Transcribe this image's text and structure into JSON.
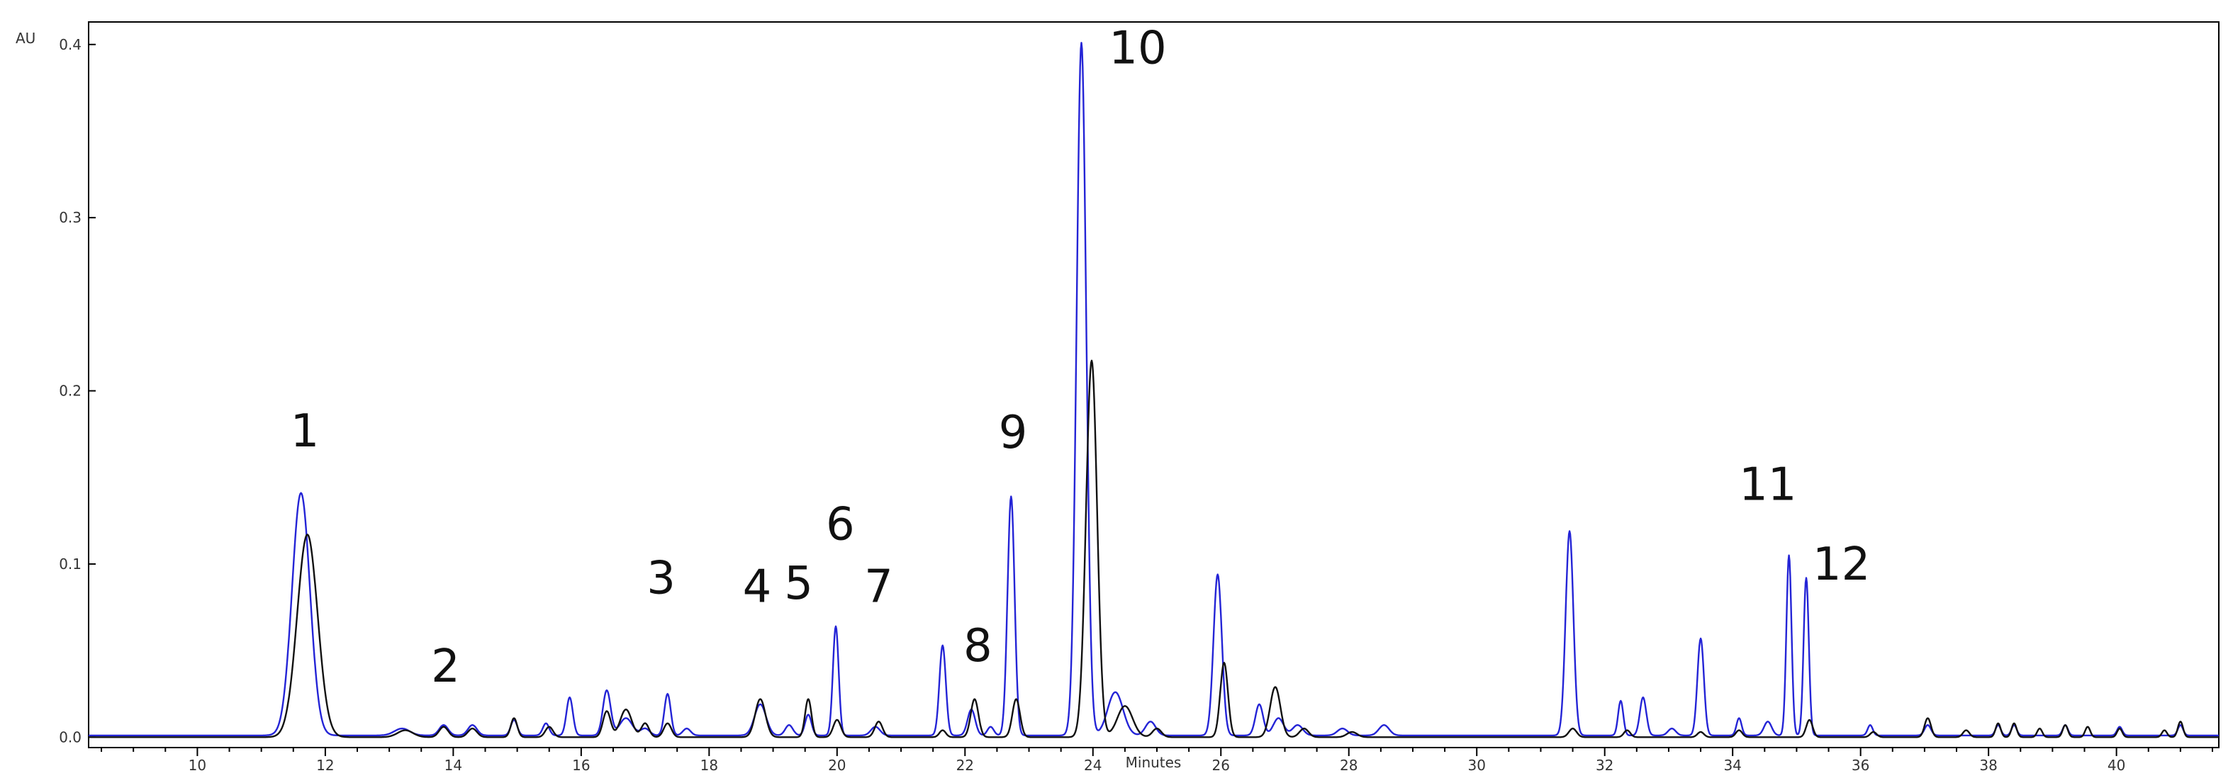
{
  "chart_data": {
    "type": "line",
    "title": "",
    "xlabel": "Minutes",
    "ylabel": "AU",
    "xlim": [
      8.3,
      41.6
    ],
    "ylim": [
      -0.006,
      0.413
    ],
    "x_ticks": [
      "10",
      "12",
      "14",
      "16",
      "18",
      "20",
      "22",
      "24",
      "26",
      "28",
      "30",
      "32",
      "34",
      "36",
      "38",
      "40"
    ],
    "y_ticks": [
      "0.0",
      "0.1",
      "0.2",
      "0.3",
      "0.4"
    ],
    "grid": false,
    "legend": "none",
    "baseline_start": 10.0,
    "series": [
      {
        "color": "#2424d6",
        "baseline": 0.001,
        "peaks": [
          [
            11.62,
            0.14,
            0.14
          ],
          [
            13.2,
            0.004,
            0.12
          ],
          [
            13.85,
            0.006,
            0.07
          ],
          [
            14.3,
            0.006,
            0.07
          ],
          [
            14.95,
            0.009,
            0.05
          ],
          [
            15.45,
            0.007,
            0.05
          ],
          [
            15.82,
            0.022,
            0.05
          ],
          [
            16.4,
            0.026,
            0.06
          ],
          [
            16.7,
            0.01,
            0.1
          ],
          [
            17.0,
            0.004,
            0.07
          ],
          [
            17.35,
            0.024,
            0.05
          ],
          [
            17.65,
            0.004,
            0.06
          ],
          [
            18.8,
            0.018,
            0.09
          ],
          [
            19.25,
            0.006,
            0.06
          ],
          [
            19.55,
            0.012,
            0.05
          ],
          [
            19.98,
            0.063,
            0.045
          ],
          [
            20.6,
            0.005,
            0.07
          ],
          [
            21.65,
            0.052,
            0.05
          ],
          [
            22.1,
            0.015,
            0.06
          ],
          [
            22.4,
            0.005,
            0.05
          ],
          [
            22.72,
            0.138,
            0.055
          ],
          [
            23.82,
            0.4,
            0.075
          ],
          [
            24.35,
            0.025,
            0.12
          ],
          [
            24.9,
            0.008,
            0.08
          ],
          [
            25.95,
            0.093,
            0.065
          ],
          [
            26.6,
            0.018,
            0.06
          ],
          [
            26.9,
            0.01,
            0.08
          ],
          [
            27.2,
            0.006,
            0.08
          ],
          [
            27.9,
            0.004,
            0.08
          ],
          [
            28.55,
            0.006,
            0.08
          ],
          [
            31.45,
            0.118,
            0.06
          ],
          [
            32.25,
            0.02,
            0.04
          ],
          [
            32.6,
            0.022,
            0.05
          ],
          [
            33.05,
            0.004,
            0.06
          ],
          [
            33.5,
            0.056,
            0.05
          ],
          [
            34.1,
            0.01,
            0.04
          ],
          [
            34.55,
            0.008,
            0.06
          ],
          [
            34.88,
            0.104,
            0.04
          ],
          [
            35.15,
            0.091,
            0.04
          ],
          [
            36.15,
            0.006,
            0.04
          ],
          [
            37.05,
            0.006,
            0.05
          ],
          [
            38.15,
            0.006,
            0.04
          ],
          [
            38.4,
            0.006,
            0.04
          ],
          [
            39.2,
            0.006,
            0.04
          ],
          [
            40.05,
            0.005,
            0.04
          ],
          [
            41.0,
            0.006,
            0.04
          ]
        ]
      },
      {
        "color": "#111111",
        "baseline": 0.0,
        "peaks": [
          [
            11.72,
            0.117,
            0.16
          ],
          [
            13.25,
            0.004,
            0.12
          ],
          [
            13.85,
            0.006,
            0.07
          ],
          [
            14.3,
            0.005,
            0.07
          ],
          [
            14.95,
            0.011,
            0.05
          ],
          [
            15.5,
            0.006,
            0.06
          ],
          [
            16.4,
            0.015,
            0.06
          ],
          [
            16.7,
            0.016,
            0.09
          ],
          [
            17.0,
            0.008,
            0.06
          ],
          [
            17.35,
            0.008,
            0.06
          ],
          [
            18.8,
            0.022,
            0.08
          ],
          [
            19.55,
            0.022,
            0.05
          ],
          [
            20.0,
            0.01,
            0.06
          ],
          [
            20.65,
            0.009,
            0.06
          ],
          [
            21.65,
            0.004,
            0.05
          ],
          [
            22.15,
            0.022,
            0.06
          ],
          [
            22.8,
            0.022,
            0.06
          ],
          [
            23.85,
            0.005,
            0.06
          ],
          [
            23.98,
            0.217,
            0.085
          ],
          [
            24.5,
            0.018,
            0.12
          ],
          [
            25.0,
            0.005,
            0.07
          ],
          [
            26.05,
            0.043,
            0.06
          ],
          [
            26.85,
            0.029,
            0.08
          ],
          [
            27.3,
            0.005,
            0.07
          ],
          [
            28.05,
            0.003,
            0.08
          ],
          [
            31.5,
            0.005,
            0.06
          ],
          [
            32.35,
            0.004,
            0.05
          ],
          [
            33.5,
            0.003,
            0.05
          ],
          [
            34.1,
            0.004,
            0.05
          ],
          [
            35.2,
            0.01,
            0.05
          ],
          [
            36.2,
            0.003,
            0.05
          ],
          [
            37.05,
            0.011,
            0.05
          ],
          [
            37.65,
            0.004,
            0.05
          ],
          [
            38.15,
            0.008,
            0.04
          ],
          [
            38.4,
            0.008,
            0.04
          ],
          [
            38.8,
            0.005,
            0.04
          ],
          [
            39.2,
            0.007,
            0.04
          ],
          [
            39.55,
            0.006,
            0.04
          ],
          [
            40.05,
            0.005,
            0.04
          ],
          [
            40.75,
            0.004,
            0.04
          ],
          [
            41.0,
            0.009,
            0.04
          ]
        ]
      }
    ],
    "annotations": [
      {
        "text": "1",
        "x": 11.68,
        "y": 0.168
      },
      {
        "text": "2",
        "x": 13.88,
        "y": 0.032
      },
      {
        "text": "3",
        "x": 17.25,
        "y": 0.083
      },
      {
        "text": "4",
        "x": 18.75,
        "y": 0.078
      },
      {
        "text": "5",
        "x": 19.4,
        "y": 0.08
      },
      {
        "text": "6",
        "x": 20.05,
        "y": 0.114
      },
      {
        "text": "7",
        "x": 20.65,
        "y": 0.078
      },
      {
        "text": "8",
        "x": 22.2,
        "y": 0.044
      },
      {
        "text": "9",
        "x": 22.75,
        "y": 0.167
      },
      {
        "text": "10",
        "x": 24.7,
        "y": 0.389
      },
      {
        "text": "11",
        "x": 34.55,
        "y": 0.137
      },
      {
        "text": "12",
        "x": 35.7,
        "y": 0.091
      }
    ]
  }
}
